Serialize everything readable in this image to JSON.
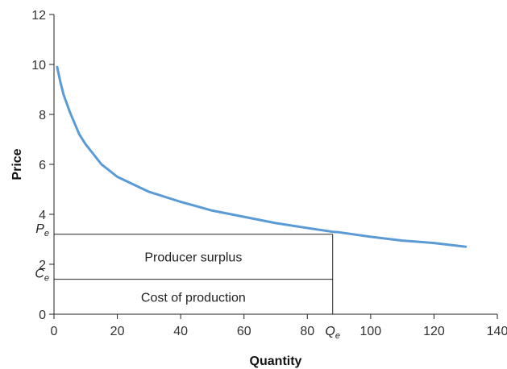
{
  "chart_data": {
    "type": "line",
    "title": "",
    "xlabel": "Quantity",
    "ylabel": "Price",
    "xlim": [
      0,
      140
    ],
    "ylim": [
      0,
      12
    ],
    "x_ticks": [
      "0",
      "20",
      "40",
      "60",
      "80",
      "100",
      "120",
      "140"
    ],
    "y_ticks": [
      "0",
      "2",
      "4",
      "6",
      "8",
      "10",
      "12"
    ],
    "grid": false,
    "legend": "none",
    "series": [
      {
        "color": "#5b9bd5",
        "x": [
          1,
          2,
          3,
          5,
          8,
          10,
          15,
          20,
          30,
          40,
          50,
          60,
          70,
          80,
          88,
          90,
          100,
          110,
          120,
          130
        ],
        "y": [
          9.9,
          9.3,
          8.8,
          8.1,
          7.2,
          6.8,
          6.0,
          5.5,
          4.9,
          4.5,
          4.15,
          3.9,
          3.65,
          3.45,
          3.3,
          3.28,
          3.1,
          2.95,
          2.85,
          2.7
        ]
      }
    ],
    "markers": {
      "qe": {
        "label": "Q",
        "sub": "e",
        "x": 88
      },
      "pe": {
        "label": "P",
        "sub": "e",
        "y": 3.2
      },
      "ce": {
        "label": "C",
        "sub": "e",
        "y": 1.4
      }
    },
    "regions": {
      "producer_surplus": "Producer surplus",
      "cost_of_production": "Cost of production"
    }
  }
}
